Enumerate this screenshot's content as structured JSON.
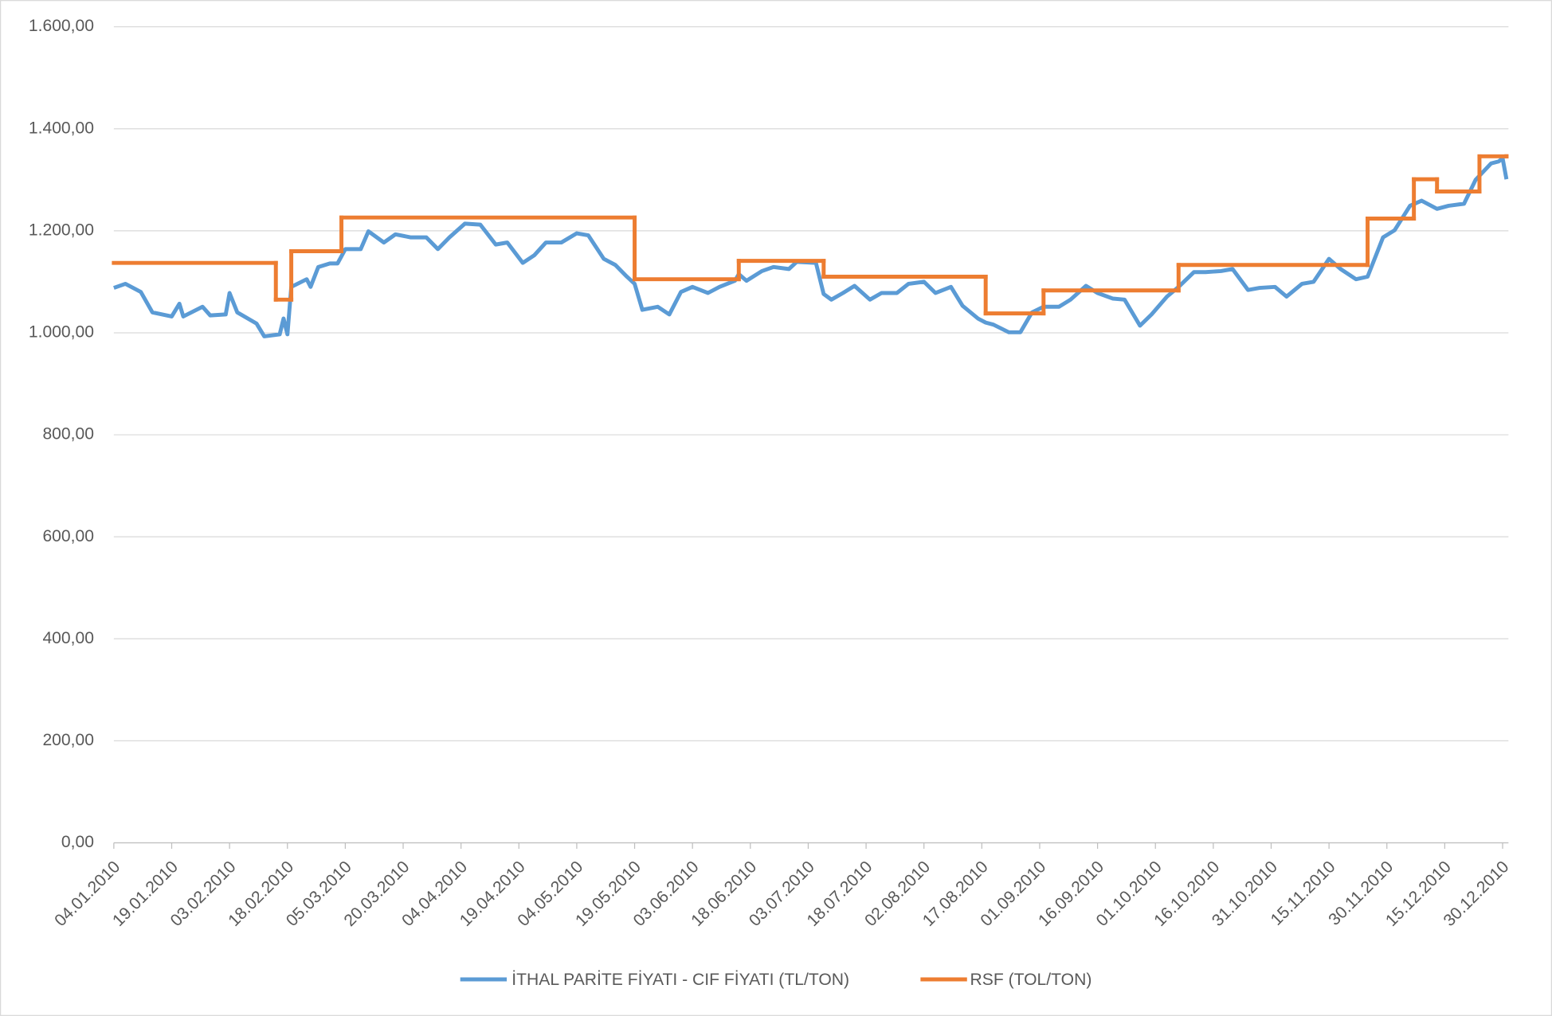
{
  "chart_data": {
    "type": "line",
    "xlim": [
      "04.01.2010",
      "31.12.2010"
    ],
    "xticks": [
      "04.01.2010",
      "19.01.2010",
      "03.02.2010",
      "18.02.2010",
      "05.03.2010",
      "20.03.2010",
      "04.04.2010",
      "19.04.2010",
      "04.05.2010",
      "19.05.2010",
      "03.06.2010",
      "18.06.2010",
      "03.07.2010",
      "18.07.2010",
      "02.08.2010",
      "17.08.2010",
      "01.09.2010",
      "16.09.2010",
      "01.10.2010",
      "16.10.2010",
      "31.10.2010",
      "15.11.2010",
      "30.11.2010",
      "15.12.2010",
      "30.12.2010"
    ],
    "ylim": [
      0,
      1600
    ],
    "yticks": [
      {
        "value": 0,
        "label": "0,00"
      },
      {
        "value": 200,
        "label": "200,00"
      },
      {
        "value": 400,
        "label": "400,00"
      },
      {
        "value": 600,
        "label": "600,00"
      },
      {
        "value": 800,
        "label": "800,00"
      },
      {
        "value": 1000,
        "label": "1.000,00"
      },
      {
        "value": 1200,
        "label": "1.200,00"
      },
      {
        "value": 1400,
        "label": "1.400,00"
      },
      {
        "value": 1600,
        "label": "1.600,00"
      }
    ],
    "grid": true,
    "legend": "bottom",
    "series": [
      {
        "name": "İTHAL PARİTE FİYATI - CIF FİYATI (TL/TON)",
        "color": "#5b9bd5",
        "step": false,
        "x": [
          "04.01.2010",
          "07.01.2010",
          "11.01.2010",
          "14.01.2010",
          "19.01.2010",
          "21.01.2010",
          "22.01.2010",
          "27.01.2010",
          "29.01.2010",
          "02.02.2010",
          "03.02.2010",
          "05.02.2010",
          "10.02.2010",
          "12.02.2010",
          "16.02.2010",
          "17.02.2010",
          "18.02.2010",
          "19.02.2010",
          "23.02.2010",
          "24.02.2010",
          "26.02.2010",
          "01.03.2010",
          "03.03.2010",
          "05.03.2010",
          "09.03.2010",
          "11.03.2010",
          "15.03.2010",
          "18.03.2010",
          "22.03.2010",
          "26.03.2010",
          "29.03.2010",
          "01.04.2010",
          "05.04.2010",
          "09.04.2010",
          "13.04.2010",
          "16.04.2010",
          "20.04.2010",
          "23.04.2010",
          "26.04.2010",
          "30.04.2010",
          "04.05.2010",
          "07.05.2010",
          "11.05.2010",
          "14.05.2010",
          "17.05.2010",
          "19.05.2010",
          "21.05.2010",
          "25.05.2010",
          "28.05.2010",
          "31.05.2010",
          "03.06.2010",
          "07.06.2010",
          "10.06.2010",
          "14.06.2010",
          "15.06.2010",
          "17.06.2010",
          "21.06.2010",
          "24.06.2010",
          "28.06.2010",
          "30.06.2010",
          "05.07.2010",
          "07.07.2010",
          "09.07.2010",
          "12.07.2010",
          "15.07.2010",
          "19.07.2010",
          "22.07.2010",
          "26.07.2010",
          "29.07.2010",
          "02.08.2010",
          "05.08.2010",
          "09.08.2010",
          "12.08.2010",
          "16.08.2010",
          "18.08.2010",
          "20.08.2010",
          "24.08.2010",
          "27.08.2010",
          "30.08.2010",
          "02.09.2010",
          "06.09.2010",
          "09.09.2010",
          "13.09.2010",
          "16.09.2010",
          "20.09.2010",
          "23.09.2010",
          "27.09.2010",
          "30.09.2010",
          "04.10.2010",
          "07.10.2010",
          "11.10.2010",
          "14.10.2010",
          "18.10.2010",
          "21.10.2010",
          "25.10.2010",
          "28.10.2010",
          "01.11.2010",
          "04.11.2010",
          "08.11.2010",
          "11.11.2010",
          "15.11.2010",
          "18.11.2010",
          "22.11.2010",
          "25.11.2010",
          "29.11.2010",
          "02.12.2010",
          "06.12.2010",
          "09.12.2010",
          "13.12.2010",
          "16.12.2010",
          "20.12.2010",
          "23.12.2010",
          "27.12.2010",
          "29.12.2010",
          "30.12.2010",
          "31.12.2010"
        ],
        "values": [
          1088,
          1096,
          1080,
          1040,
          1032,
          1057,
          1032,
          1051,
          1034,
          1036,
          1078,
          1040,
          1018,
          993,
          997,
          1028,
          997,
          1090,
          1105,
          1090,
          1129,
          1136,
          1136,
          1164,
          1164,
          1199,
          1177,
          1193,
          1187,
          1187,
          1164,
          1187,
          1214,
          1212,
          1173,
          1177,
          1137,
          1152,
          1177,
          1177,
          1195,
          1191,
          1145,
          1133,
          1110,
          1096,
          1045,
          1051,
          1036,
          1080,
          1090,
          1078,
          1090,
          1102,
          1115,
          1102,
          1121,
          1129,
          1125,
          1139,
          1137,
          1076,
          1065,
          1078,
          1092,
          1065,
          1078,
          1078,
          1096,
          1100,
          1078,
          1090,
          1053,
          1028,
          1020,
          1016,
          1001,
          1001,
          1040,
          1051,
          1051,
          1065,
          1092,
          1078,
          1067,
          1065,
          1014,
          1036,
          1071,
          1090,
          1119,
          1119,
          1121,
          1125,
          1084,
          1088,
          1090,
          1071,
          1096,
          1100,
          1145,
          1125,
          1105,
          1110,
          1187,
          1201,
          1249,
          1259,
          1243,
          1249,
          1253,
          1300,
          1332,
          1336,
          1342,
          1301
        ]
      },
      {
        "name": "RSF (TOL/TON)",
        "color": "#ed7d31",
        "step": true,
        "x": [
          "04.01.2010",
          "15.02.2010",
          "19.02.2010",
          "04.03.2010",
          "19.05.2010",
          "15.06.2010",
          "07.07.2010",
          "18.08.2010",
          "02.09.2010",
          "07.10.2010",
          "25.11.2010",
          "07.12.2010",
          "13.12.2010",
          "24.12.2010",
          "31.12.2010"
        ],
        "values": [
          1137,
          1065,
          1160,
          1226,
          1105,
          1141,
          1110,
          1038,
          1083,
          1133,
          1224,
          1301,
          1277,
          1346,
          1346
        ]
      }
    ]
  }
}
